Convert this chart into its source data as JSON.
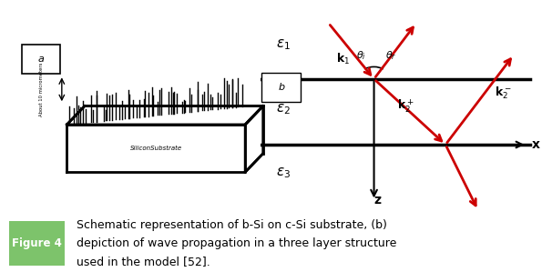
{
  "bg_color": "#ffffff",
  "border_color": "#7dc36b",
  "fig_width": 5.95,
  "fig_height": 2.99,
  "caption_label": "Figure 4",
  "caption_label_bg": "#7dc36b",
  "caption_label_fg": "#ffffff",
  "caption_text_line1": "Schematic representation of b-Si on c-Si substrate, (b)",
  "caption_text_line2": "depiction of wave propagation in a three layer structure",
  "caption_text_line3": "used in the model [52].",
  "panel_a_label": "a",
  "panel_b_label": "b",
  "scale_label": "About 10 micrometers",
  "substrate_label": "SiliconSubstrate",
  "arrow_color": "#cc0000",
  "caption_font_size": 9.0,
  "caption_label_font_size": 8.5
}
